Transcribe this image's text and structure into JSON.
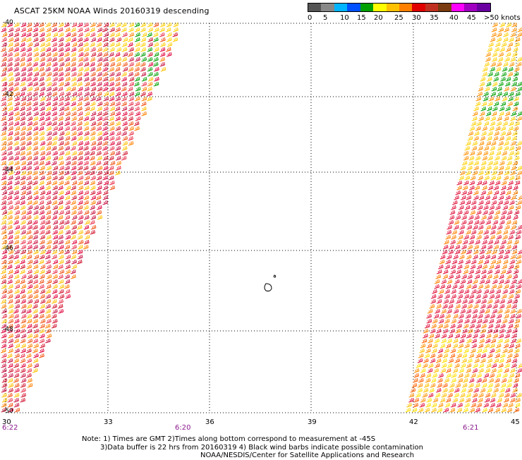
{
  "title": "ASCAT 25KM NOAA Winds 20160319 descending",
  "legend": {
    "unit_label": "knots",
    "ticks": [
      "0",
      "5",
      "10",
      "15",
      "20",
      "25",
      "30",
      "35",
      "40",
      "45",
      ">50 knots"
    ],
    "colors": [
      "#555555",
      "#888888",
      "#00b4ff",
      "#0050ff",
      "#00a000",
      "#ffff00",
      "#ffc000",
      "#ff8000",
      "#e00000",
      "#c03020",
      "#7a3a10",
      "#ff00ff",
      "#a000c0",
      "#6a00a0"
    ]
  },
  "map": {
    "lat_labels": [
      "-40",
      "-42",
      "-44",
      "-46",
      "-48",
      "-50"
    ],
    "lon_labels": [
      "30",
      "33",
      "36",
      "39",
      "42",
      "45"
    ],
    "lat_range": [
      -50,
      -40
    ],
    "lon_range": [
      30,
      45
    ],
    "times": [
      {
        "label": "6:22",
        "lon": 30
      },
      {
        "label": "6:20",
        "lon": 35.3
      },
      {
        "label": "6:21",
        "lon": 43.6
      }
    ],
    "time_color": "#8a1a8c"
  },
  "notes": [
    "Note: 1) Times are GMT 2)Times along bottom correspond to measurement at -45S",
    "3)Data buffer is 22 hrs from 20160319 4) Black wind barbs indicate possible contamination",
    "NOAA/NESDIS/Center for Satellite Applications and Research"
  ]
}
